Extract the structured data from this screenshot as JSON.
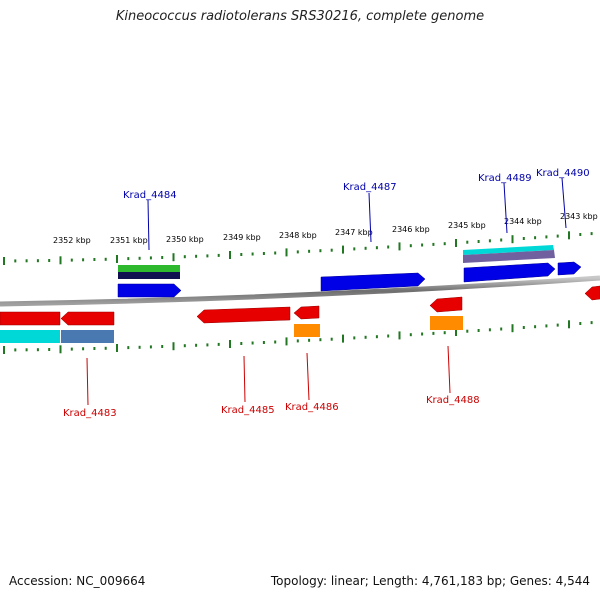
{
  "title": "Kineococcus radiotolerans SRS30216, complete genome",
  "footer": {
    "accession": "Accession: NC_009664",
    "summary": "Topology: linear; Length: 4,761,183 bp; Genes: 4,544"
  },
  "axis": {
    "tick_labels": [
      "2352 kbp",
      "2351 kbp",
      "2350 kbp",
      "2349 kbp",
      "2348 kbp",
      "2347 kbp",
      "2346 kbp",
      "2345 kbp",
      "2344 kbp",
      "2343 kbp"
    ]
  },
  "gene_labels": {
    "top": [
      "Krad_4484",
      "Krad_4487",
      "Krad_4489",
      "Krad_4490"
    ],
    "bottom": [
      "Krad_4483",
      "Krad_4485",
      "Krad_4486",
      "Krad_4488"
    ]
  },
  "colors": {
    "forward_gene": "#0000e6",
    "reverse_gene": "#e60000",
    "rna_gene": "#ff8c00",
    "cds_green": "#2db82d",
    "cds_navy": "#101050",
    "cds_cyan": "#00d8d8",
    "cds_steel": "#4a78b0",
    "cds_purple": "#7060a0",
    "tick": "#227722",
    "backbone": "#808080",
    "top_label": "#0000aa",
    "bottom_label": "#cc0000"
  }
}
